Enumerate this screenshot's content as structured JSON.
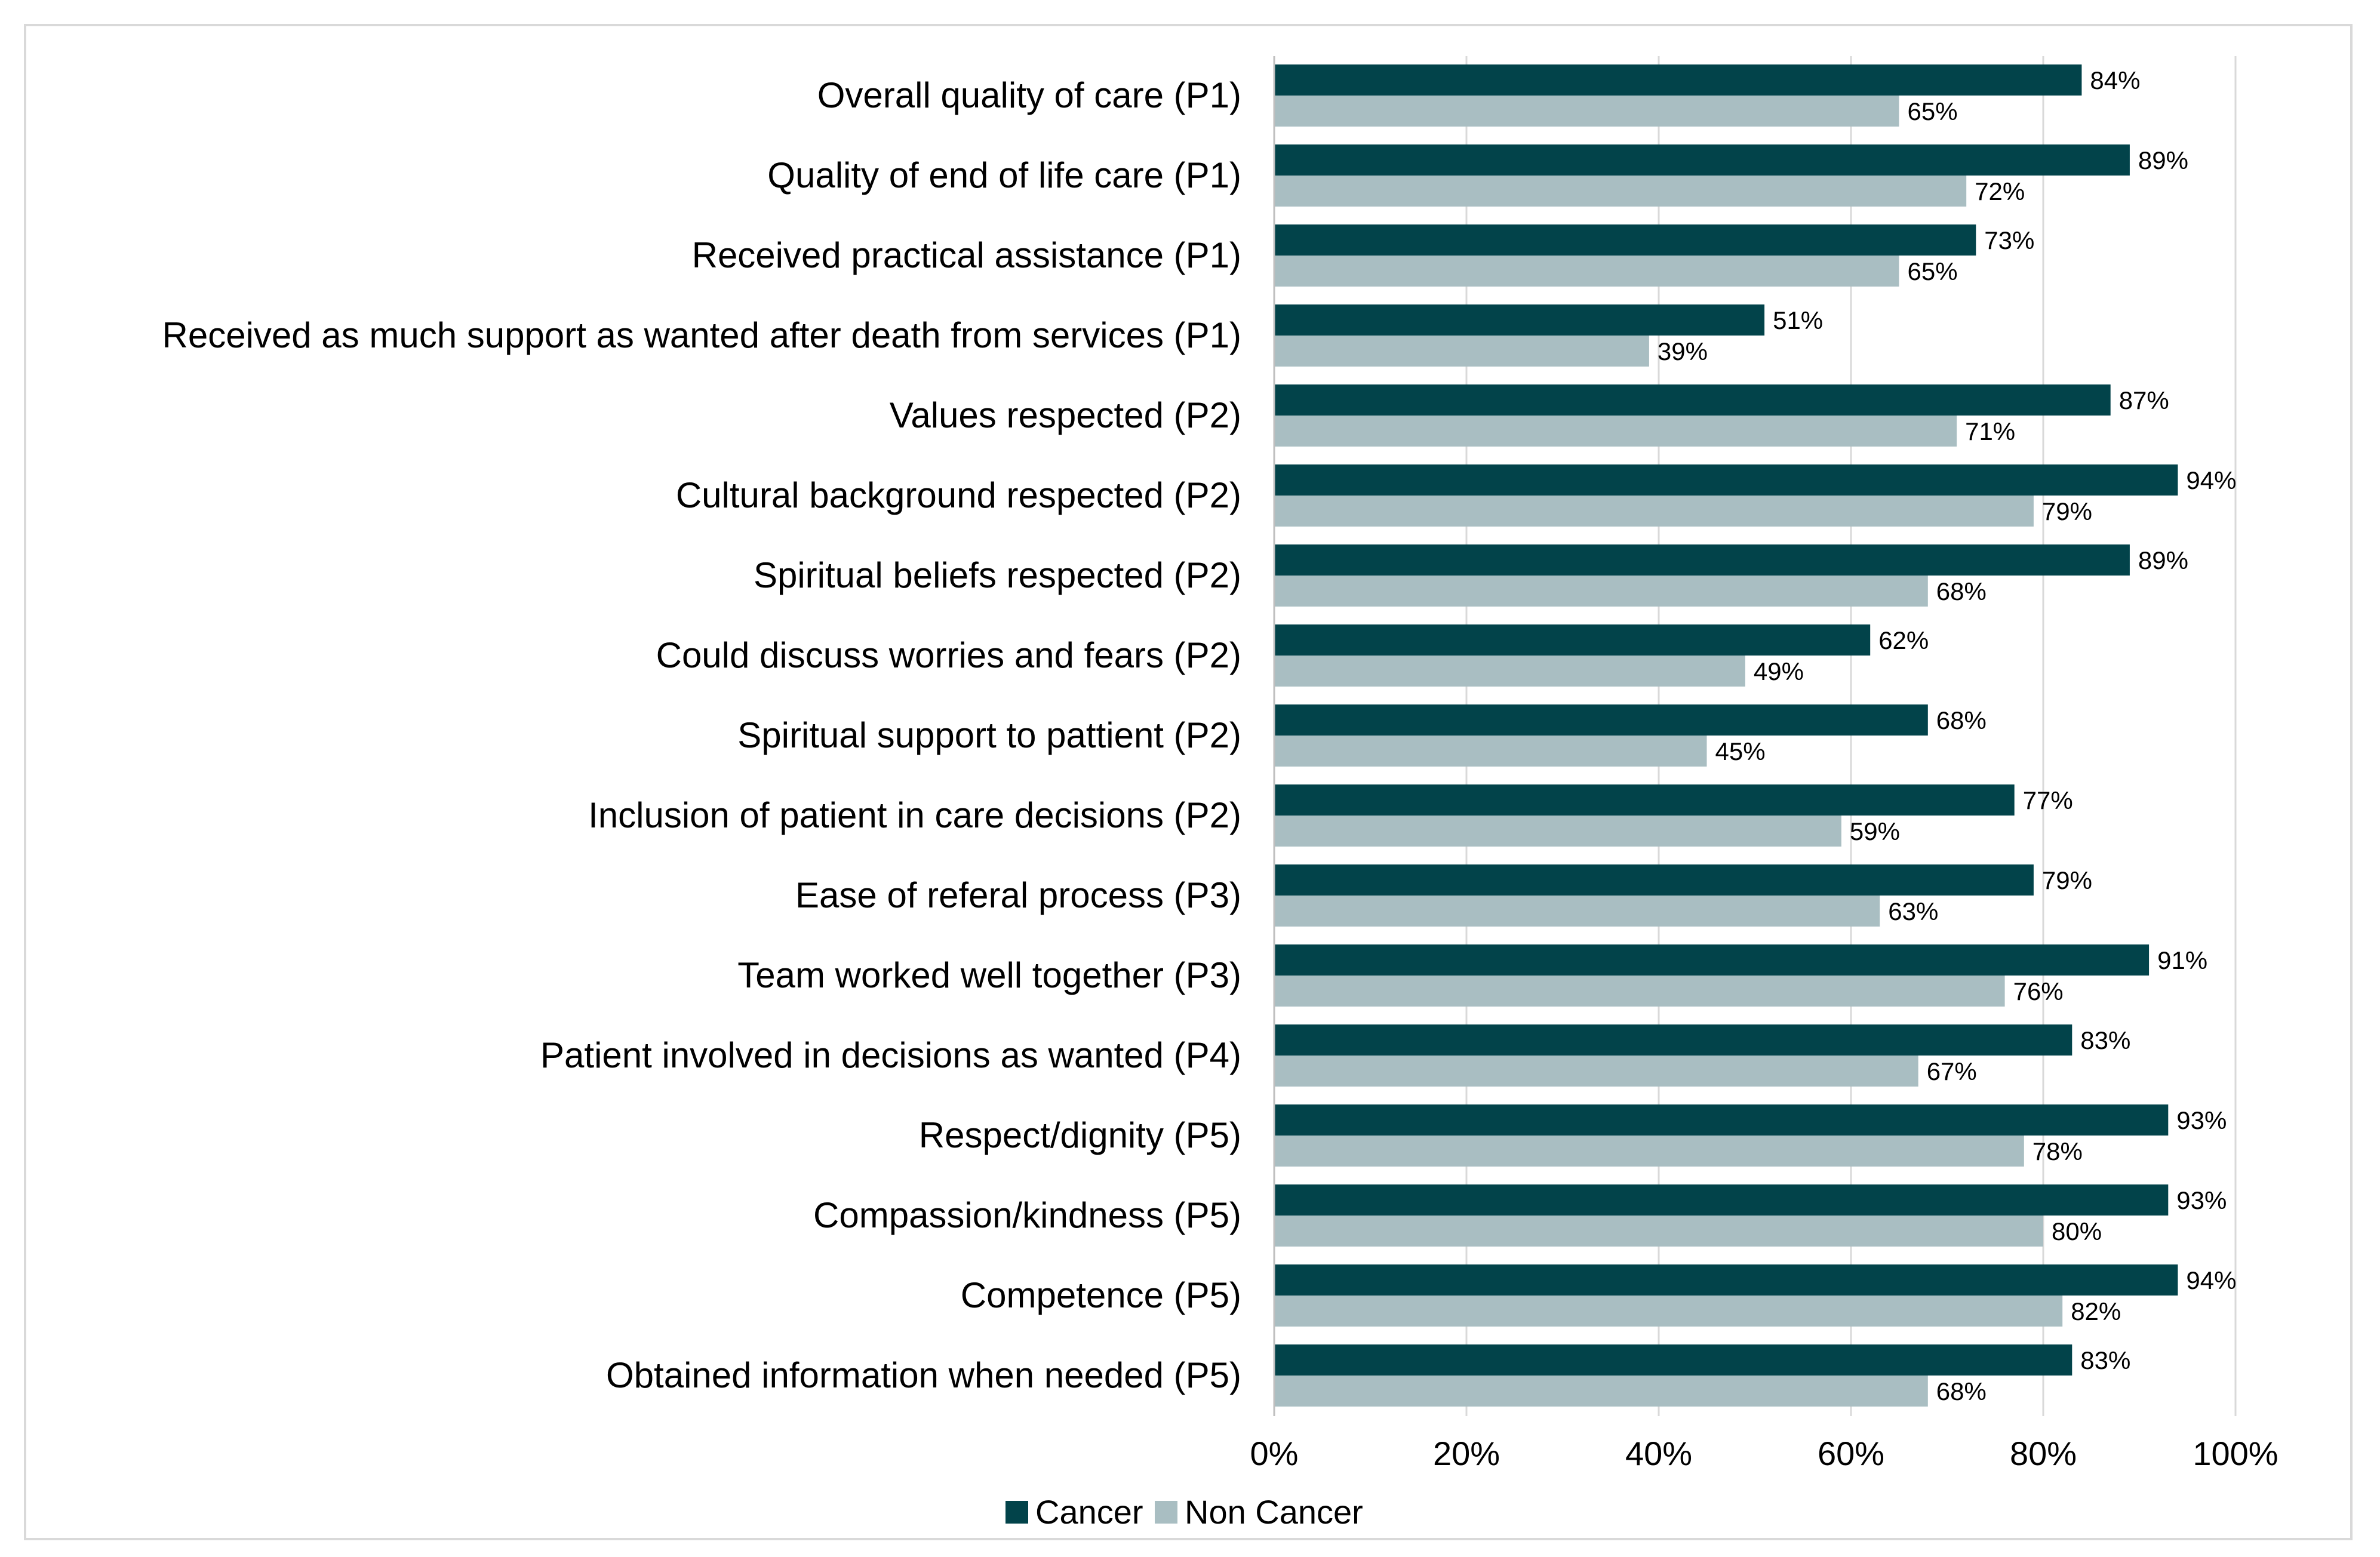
{
  "chart_data": {
    "type": "bar",
    "orientation": "horizontal",
    "categories": [
      "Overall quality of care (P1)",
      "Quality of end of life care (P1)",
      "Received practical assistance (P1)",
      "Received as much support as wanted after death from services (P1)",
      "Values respected (P2)",
      "Cultural background respected (P2)",
      "Spiritual beliefs respected (P2)",
      "Could discuss worries and fears (P2)",
      "Spiritual support to pattient (P2)",
      "Inclusion of patient in care decisions (P2)",
      "Ease of referal process (P3)",
      "Team worked well together (P3)",
      "Patient involved in decisions as wanted (P4)",
      "Respect/dignity (P5)",
      "Compassion/kindness (P5)",
      "Competence (P5)",
      "Obtained information when needed (P5)"
    ],
    "series": [
      {
        "name": "Cancer",
        "color": "#02434a",
        "values": [
          84,
          89,
          73,
          51,
          87,
          94,
          89,
          62,
          68,
          77,
          79,
          91,
          83,
          93,
          93,
          94,
          83
        ],
        "labels": [
          "84%",
          "89%",
          "73%",
          "51%",
          "87%",
          "94%",
          "89%",
          "62%",
          "68%",
          "77%",
          "79%",
          "91%",
          "83%",
          "93%",
          "93%",
          "94%",
          "83%"
        ]
      },
      {
        "name": "Non Cancer",
        "color": "#a9bec2",
        "values": [
          65,
          72,
          65,
          39,
          71,
          79,
          68,
          49,
          45,
          59,
          63,
          76,
          67,
          78,
          80,
          82,
          68
        ],
        "labels": [
          "65%",
          "72%",
          "65%",
          "39%",
          "71%",
          "79%",
          "68%",
          "49%",
          "45%",
          "59%",
          "63%",
          "76%",
          "67%",
          "78%",
          "80%",
          "82%",
          "68%"
        ]
      }
    ],
    "xlim": [
      0,
      100
    ],
    "xticks": [
      0,
      20,
      40,
      60,
      80,
      100
    ],
    "xtick_labels": [
      "0%",
      "20%",
      "40%",
      "60%",
      "80%",
      "100%"
    ],
    "gridlines": "vertical",
    "grid_color": "#d9d9d9",
    "legend": {
      "position": "bottom",
      "entries": [
        "Cancer",
        "Non Cancer"
      ]
    },
    "title": "",
    "xlabel": "",
    "ylabel": ""
  }
}
